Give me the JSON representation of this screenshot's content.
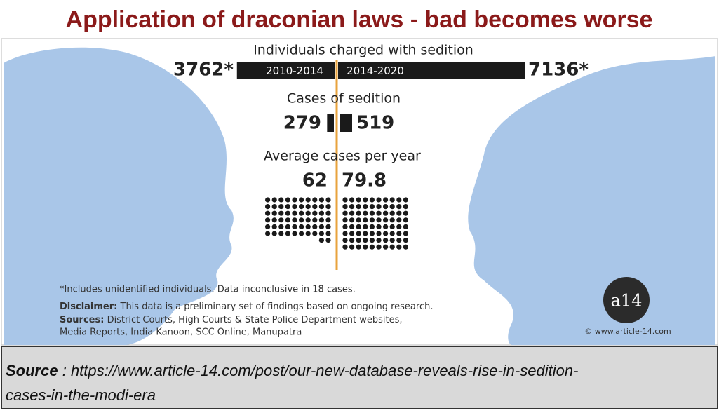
{
  "header": {
    "title": "Application of draconian laws - bad becomes worse"
  },
  "chart_data": [
    {
      "type": "bar",
      "title": "Individuals charged with sedition",
      "categories": [
        "2010-2014",
        "2014-2020"
      ],
      "values": [
        3762,
        7136
      ],
      "value_labels": [
        "3762*",
        "7136*"
      ],
      "color": "#1a1a1a"
    },
    {
      "type": "bar",
      "title": "Cases of sedition",
      "categories": [
        null,
        null
      ],
      "values": [
        279,
        519
      ],
      "color": "#1a1a1a"
    },
    {
      "type": "dots",
      "title": "Average cases per year",
      "categories": [
        null,
        null
      ],
      "values": [
        62,
        79.8
      ],
      "color": "#1a1a1a"
    }
  ],
  "notes": {
    "footnote": "*Includes unidentified individuals. Data inconclusive in 18 cases.",
    "disclaimer": {
      "label": "Disclaimer:",
      "text": "This data is a preliminary set of findings based on ongoing research."
    },
    "sources": {
      "label": "Sources:",
      "lines": [
        "District Courts, High Courts & State Police Department websites,",
        "Media Reports, India Kanoon, SCC Online, Manupatra"
      ]
    },
    "logo": "a14",
    "credit": "© www.article-14.com"
  },
  "source": {
    "label": "Source",
    "lines": [
      ": https://www.article-14.com/post/our-new-database-reveals-rise-in-sedition-",
      "cases-in-the-modi-era"
    ]
  }
}
